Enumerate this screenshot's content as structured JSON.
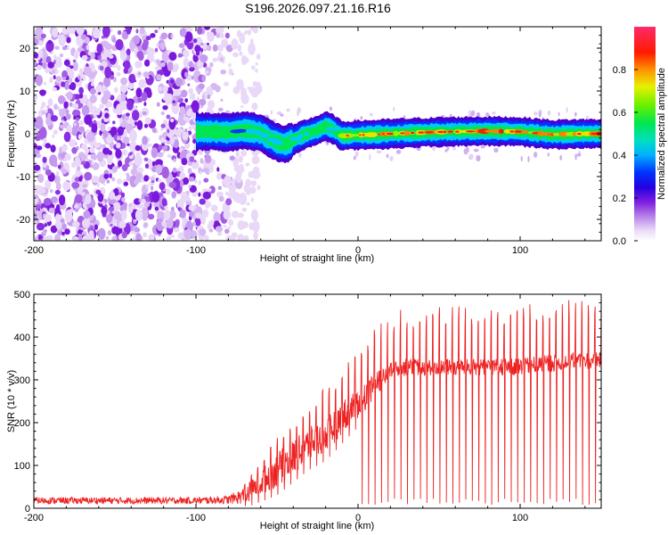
{
  "title": "S196.2026.097.21.16.R16",
  "colors": {
    "snr_line": "#ee2222",
    "axis": "#000000",
    "background": "#ffffff",
    "colormap": [
      "#ffffff",
      "#e6d2f7",
      "#b57be8",
      "#8a1ee6",
      "#4a00d0",
      "#0000ff",
      "#00d8ff",
      "#00e07a",
      "#33ee00",
      "#f0f000",
      "#ff7f00",
      "#ff0000",
      "#ff2266"
    ]
  },
  "chart_data": [
    {
      "type": "heatmap",
      "name": "spectrogram",
      "xlabel": "Height of straight line (km)",
      "ylabel": "Frequency (Hz)",
      "xlim": [
        -200,
        150
      ],
      "ylim": [
        -25,
        25
      ],
      "xticks": [
        -200,
        -100,
        0,
        100
      ],
      "xtick_labels": [
        "-200",
        "-100",
        "0",
        "100"
      ],
      "yticks": [
        -20,
        -10,
        0,
        10,
        20
      ],
      "ytick_labels": [
        "-20",
        "-10",
        "0",
        "10",
        "20"
      ],
      "noise_region_km": [
        -200,
        -70
      ],
      "signal_start_km": -100,
      "signal_track": {
        "x": [
          -100,
          -90,
          -80,
          -70,
          -65,
          -60,
          -55,
          -50,
          -45,
          -40,
          -35,
          -30,
          -25,
          -20,
          -15,
          -10,
          -5,
          0,
          10,
          20,
          40,
          60,
          80,
          100,
          120,
          140,
          150
        ],
        "y": [
          0.5,
          0.5,
          0.3,
          0.8,
          0.5,
          0.2,
          -1.0,
          -2.0,
          -2.5,
          -1.5,
          -0.5,
          0.2,
          0.8,
          1.8,
          1.0,
          -0.5,
          -0.4,
          -0.3,
          -0.2,
          0.0,
          0.3,
          0.5,
          0.6,
          0.5,
          -0.2,
          0.0,
          0.0
        ],
        "intensity": [
          0.2,
          0.3,
          0.35,
          0.5,
          0.55,
          0.6,
          0.55,
          0.5,
          0.6,
          0.65,
          0.6,
          0.6,
          0.65,
          0.7,
          0.6,
          0.75,
          0.8,
          0.85,
          0.88,
          0.88,
          0.9,
          0.9,
          0.92,
          0.92,
          0.9,
          0.9,
          0.9
        ]
      },
      "colorbar": {
        "label": "Normalized spectral amplitude",
        "range": [
          0.0,
          1.0
        ],
        "ticks": [
          0.0,
          0.2,
          0.4,
          0.6,
          0.8
        ],
        "tick_labels": [
          "0.0",
          "0.2",
          "0.4",
          "0.6",
          "0.8"
        ]
      }
    },
    {
      "type": "line",
      "name": "snr",
      "xlabel": "Height of straight line (km)",
      "ylabel": "SNR (10 * v/v)",
      "xlim": [
        -200,
        150
      ],
      "ylim": [
        0,
        500
      ],
      "xticks": [
        -200,
        -100,
        0,
        100
      ],
      "xtick_labels": [
        "-200",
        "-100",
        "0",
        "100"
      ],
      "yticks": [
        0,
        100,
        200,
        300,
        400,
        500
      ],
      "ytick_labels": [
        "0",
        "100",
        "200",
        "300",
        "400",
        "500"
      ],
      "series": [
        {
          "name": "SNR",
          "envelope_x": [
            -200,
            -150,
            -100,
            -80,
            -70,
            -60,
            -50,
            -40,
            -30,
            -20,
            -10,
            0,
            10,
            20,
            30,
            40,
            60,
            80,
            100,
            120,
            140,
            150
          ],
          "envelope_mean": [
            18,
            18,
            18,
            20,
            30,
            60,
            90,
            120,
            150,
            170,
            210,
            250,
            285,
            320,
            330,
            330,
            330,
            330,
            330,
            340,
            345,
            345
          ],
          "envelope_noise": [
            8,
            8,
            8,
            10,
            20,
            30,
            40,
            40,
            40,
            40,
            40,
            40,
            30,
            20,
            20,
            20,
            20,
            20,
            20,
            20,
            20,
            20
          ],
          "spike_peak": [
            25,
            25,
            25,
            35,
            60,
            110,
            160,
            200,
            240,
            280,
            320,
            380,
            420,
            450,
            460,
            470,
            470,
            470,
            470,
            480,
            480,
            480
          ],
          "spike_start_km": -70,
          "spike_spacing_km": 4
        }
      ]
    }
  ]
}
